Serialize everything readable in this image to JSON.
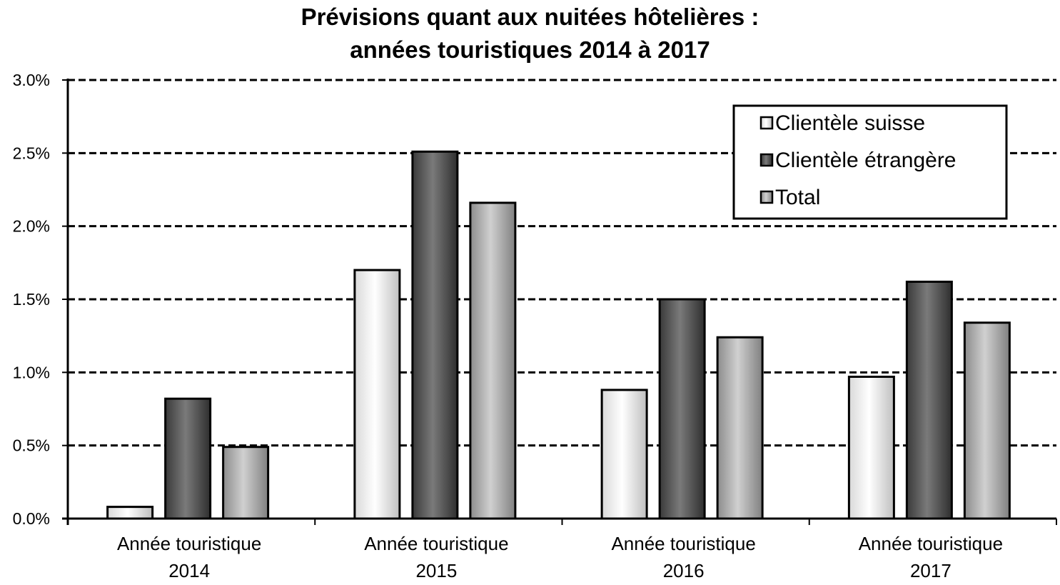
{
  "chart_data": {
    "type": "bar",
    "title_lines": [
      "Prévisions quant aux nuitées hôtelières :",
      "années touristiques 2014 à 2017"
    ],
    "categories": [
      [
        "Année touristique",
        "2014"
      ],
      [
        "Année touristique",
        "2015"
      ],
      [
        "Année touristique",
        "2016"
      ],
      [
        "Année touristique",
        "2017"
      ]
    ],
    "series": [
      {
        "name": "Clientèle suisse",
        "values": [
          0.08,
          1.7,
          0.88,
          0.97
        ],
        "color": "#f2f2f2",
        "style": "light"
      },
      {
        "name": "Clientèle étrangère",
        "values": [
          0.82,
          2.51,
          1.5,
          1.62
        ],
        "color": "#595959",
        "style": "dark"
      },
      {
        "name": "Total",
        "values": [
          0.49,
          2.16,
          1.24,
          1.34
        ],
        "color": "#a6a6a6",
        "style": "medium"
      }
    ],
    "y_ticks": [
      "0.0%",
      "0.5%",
      "1.0%",
      "1.5%",
      "2.0%",
      "2.5%",
      "3.0%"
    ],
    "ylim": [
      0,
      3.0
    ],
    "grid": true,
    "grid_style": "dashed",
    "legend_position": "top-right"
  }
}
